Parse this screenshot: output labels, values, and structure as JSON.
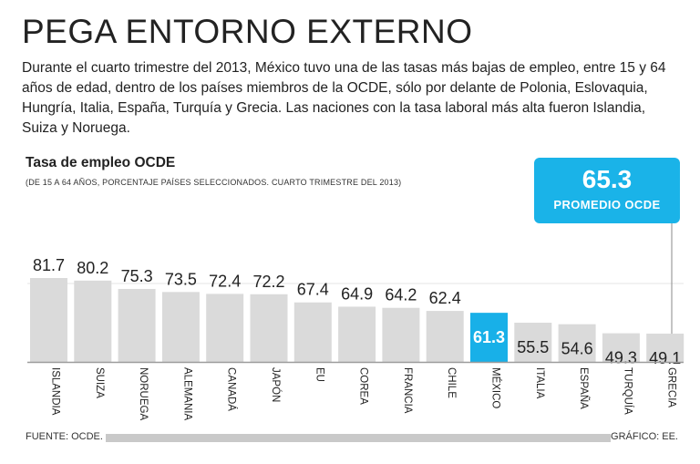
{
  "headline": "PEGA ENTORNO EXTERNO",
  "intro": "Durante el cuarto trimestre del 2013, México tuvo una de las tasas más bajas de empleo, entre 15 y 64 años de edad, dentro de los países miembros de la OCDE, sólo por delante de Polonia, Eslovaquia, Hungría, Italia, España, Turquía y Grecia. Las naciones con la tasa laboral más alta fueron Islandia, Suiza y Noruega.",
  "source": "FUENTE: OCDE.",
  "credit": "GRÁFICO: EE.",
  "colors": {
    "bar": "#dadada",
    "highlight": "#18b0e8",
    "baseline": "#9c9c9c",
    "text": "#222222"
  },
  "chart_data": {
    "type": "bar",
    "title": "Tasa de empleo OCDE",
    "subtitle": "(DE 15 A 64 AÑOS, PORCENTAJE PAÍSES SELECCIONADOS. CUARTO TRIMESTRE DEL 2013)",
    "categories": [
      "ISLANDIA",
      "SUIZA",
      "NORUEGA",
      "ALEMANIA",
      "CANADÁ",
      "JAPÓN",
      "EU",
      "COREA",
      "FRANCIA",
      "CHILE",
      "MÉXICO",
      "ITALIA",
      "ESPAÑA",
      "TURQUÍA",
      "GRECIA"
    ],
    "values": [
      81.7,
      80.2,
      75.3,
      73.5,
      72.4,
      72.2,
      67.4,
      64.9,
      64.2,
      62.4,
      61.3,
      55.5,
      54.6,
      49.3,
      49.1
    ],
    "value_labels": [
      "81.7",
      "80.2",
      "75.3",
      "73.5",
      "72.4",
      "72.2",
      "67.4",
      "64.9",
      "64.2",
      "62.4",
      "61.3",
      "55.5",
      "54.6",
      "49.3",
      "49.1"
    ],
    "highlight": "MÉXICO",
    "reference": {
      "value": 65.3,
      "label_value": "65.3",
      "label": "PROMEDIO OCDE"
    },
    "xlabel": "",
    "ylabel": "",
    "ylim": [
      0,
      85
    ]
  }
}
